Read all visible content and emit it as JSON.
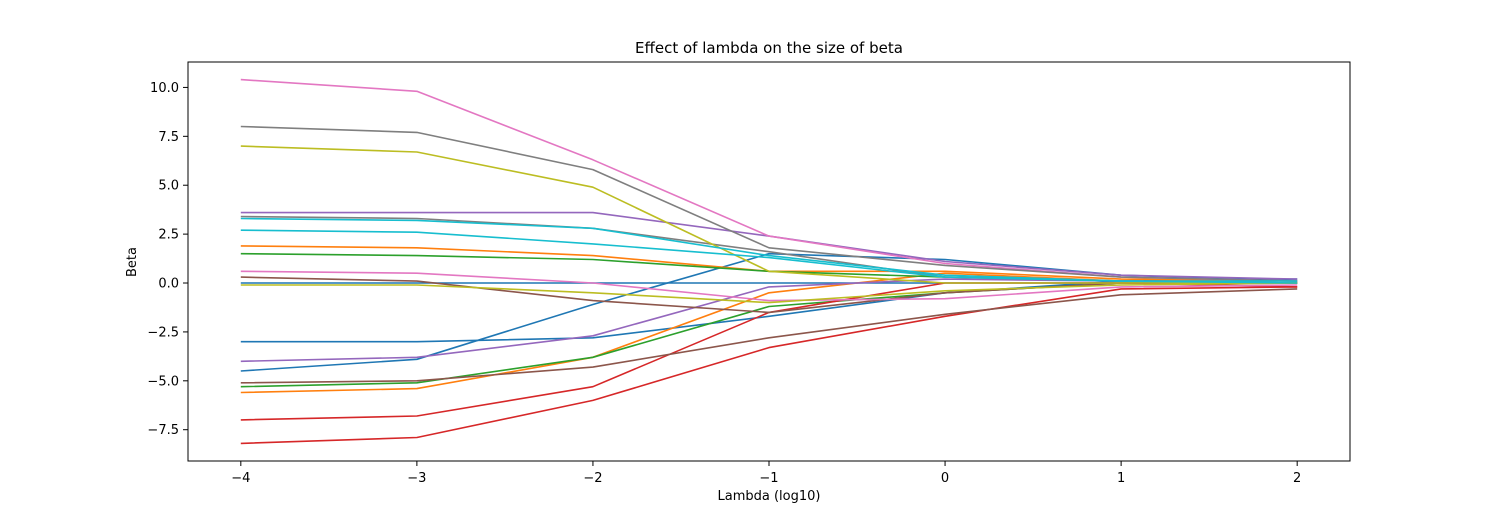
{
  "chart_data": {
    "type": "line",
    "title": "Effect of lambda on the size of beta",
    "xlabel": "Lambda (log10)",
    "ylabel": "Beta",
    "x": [
      -4,
      -3,
      -2,
      -1,
      0,
      1,
      2
    ],
    "xlim": [
      -4.3,
      2.3
    ],
    "ylim": [
      -9.1,
      11.3
    ],
    "xticks": [
      -4,
      -3,
      -2,
      -1,
      0,
      1,
      2
    ],
    "xtick_labels": [
      "−4",
      "−3",
      "−2",
      "−1",
      "0",
      "1",
      "2"
    ],
    "yticks": [
      -7.5,
      -5.0,
      -2.5,
      0.0,
      2.5,
      5.0,
      7.5,
      10.0
    ],
    "ytick_labels": [
      "−7.5",
      "−5.0",
      "−2.5",
      "0.0",
      "2.5",
      "5.0",
      "7.5",
      "10.0"
    ],
    "grid": false,
    "legend": false,
    "series": [
      {
        "color": "#1f77b4",
        "values": [
          0.0,
          0.0,
          0.0,
          0.0,
          0.0,
          0.0,
          0.0
        ]
      },
      {
        "color": "#1f77b4",
        "values": [
          -4.5,
          -3.9,
          -1.1,
          1.5,
          1.2,
          0.4,
          0.1
        ]
      },
      {
        "color": "#1f77b4",
        "values": [
          -3.0,
          -3.0,
          -2.8,
          -1.7,
          -0.5,
          0.1,
          0.2
        ]
      },
      {
        "color": "#ff7f0e",
        "values": [
          1.9,
          1.8,
          1.4,
          0.6,
          0.6,
          0.2,
          0.1
        ]
      },
      {
        "color": "#ff7f0e",
        "values": [
          -5.6,
          -5.4,
          -3.8,
          -0.5,
          0.5,
          0.1,
          0.0
        ]
      },
      {
        "color": "#2ca02c",
        "values": [
          1.5,
          1.4,
          1.2,
          0.6,
          0.3,
          0.1,
          0.0
        ]
      },
      {
        "color": "#2ca02c",
        "values": [
          -5.3,
          -5.1,
          -3.8,
          -1.2,
          -0.5,
          0.0,
          0.0
        ]
      },
      {
        "color": "#d62728",
        "values": [
          -7.0,
          -6.8,
          -5.3,
          -1.5,
          0.0,
          0.0,
          -0.2
        ]
      },
      {
        "color": "#d62728",
        "values": [
          -8.2,
          -7.9,
          -6.0,
          -3.3,
          -1.7,
          -0.3,
          -0.2
        ]
      },
      {
        "color": "#9467bd",
        "values": [
          3.6,
          3.6,
          3.6,
          2.4,
          1.1,
          0.4,
          0.2
        ]
      },
      {
        "color": "#9467bd",
        "values": [
          -4.0,
          -3.8,
          -2.7,
          -0.2,
          0.2,
          0.1,
          0.0
        ]
      },
      {
        "color": "#8c564b",
        "values": [
          0.3,
          0.1,
          -0.9,
          -1.5,
          -0.5,
          0.0,
          0.0
        ]
      },
      {
        "color": "#8c564b",
        "values": [
          -5.1,
          -5.0,
          -4.3,
          -2.8,
          -1.6,
          -0.6,
          -0.3
        ]
      },
      {
        "color": "#e377c2",
        "values": [
          10.4,
          9.8,
          6.3,
          2.4,
          1.0,
          0.3,
          0.1
        ]
      },
      {
        "color": "#e377c2",
        "values": [
          0.6,
          0.5,
          0.0,
          -0.9,
          -0.8,
          -0.2,
          -0.1
        ]
      },
      {
        "color": "#7f7f7f",
        "values": [
          8.0,
          7.7,
          5.8,
          1.8,
          0.9,
          0.3,
          0.1
        ]
      },
      {
        "color": "#7f7f7f",
        "values": [
          3.4,
          3.3,
          2.8,
          1.6,
          0.3,
          0.1,
          0.0
        ]
      },
      {
        "color": "#bcbd22",
        "values": [
          7.0,
          6.7,
          4.9,
          0.6,
          0.0,
          0.0,
          0.0
        ]
      },
      {
        "color": "#bcbd22",
        "values": [
          -0.1,
          -0.1,
          -0.5,
          -1.0,
          -0.4,
          -0.1,
          0.0
        ]
      },
      {
        "color": "#17becf",
        "values": [
          2.7,
          2.6,
          2.0,
          1.3,
          0.3,
          0.1,
          0.1
        ]
      },
      {
        "color": "#17becf",
        "values": [
          3.3,
          3.2,
          2.8,
          1.4,
          0.4,
          0.1,
          0.0
        ]
      }
    ]
  }
}
